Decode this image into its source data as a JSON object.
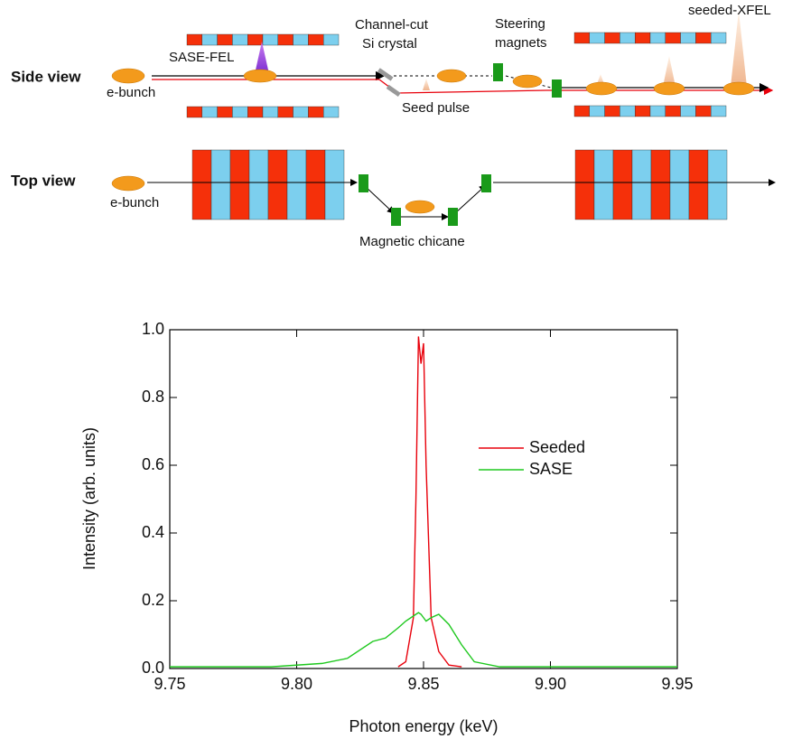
{
  "diagram": {
    "side_view": {
      "label": "Side view",
      "e_bunch": "e-bunch",
      "sase_fel": "SASE-FEL",
      "crystal": [
        "Channel-cut",
        "Si crystal"
      ],
      "seed_pulse": "Seed pulse",
      "steering": [
        "Steering",
        "magnets"
      ],
      "seeded_xfel": "seeded-XFEL"
    },
    "top_view": {
      "label": "Top view",
      "e_bunch": "e-bunch",
      "chicane": "Magnetic chicane"
    }
  },
  "chart_data": {
    "type": "line",
    "xlabel": "Photon energy (keV)",
    "ylabel": "Intensity (arb. units)",
    "x": [
      9.75,
      9.79,
      9.81,
      9.82,
      9.83,
      9.835,
      9.84,
      9.843,
      9.846,
      9.847,
      9.848,
      9.849,
      9.85,
      9.851,
      9.853,
      9.856,
      9.86,
      9.865,
      9.87,
      9.88,
      9.95
    ],
    "series": [
      {
        "name": "Seeded",
        "color": "#e8000b",
        "values": [
          null,
          null,
          null,
          null,
          null,
          null,
          0.005,
          0.02,
          0.15,
          0.5,
          0.98,
          0.9,
          0.96,
          0.6,
          0.15,
          0.05,
          0.01,
          0.005,
          null,
          null,
          null
        ]
      },
      {
        "name": "SASE",
        "color": "#1ec81e",
        "values": [
          0.005,
          0.005,
          0.015,
          0.03,
          0.08,
          0.09,
          0.12,
          0.14,
          0.155,
          0.16,
          0.165,
          0.16,
          0.15,
          0.14,
          0.15,
          0.16,
          0.13,
          0.07,
          0.02,
          0.005,
          0.005
        ]
      }
    ],
    "xlim": [
      9.75,
      9.95
    ],
    "xticks": [
      9.75,
      {
        "value": 9.8,
        "label": "9.80"
      },
      9.85,
      {
        "value": 9.9,
        "label": "9.90"
      },
      9.95
    ],
    "ylim": [
      0,
      1
    ],
    "yticks": [
      {
        "value": 0,
        "label": "0.0"
      },
      0.2,
      0.4,
      0.6,
      0.8,
      {
        "value": 1,
        "label": "1.0"
      }
    ],
    "grid": false,
    "legend": "center-right"
  }
}
